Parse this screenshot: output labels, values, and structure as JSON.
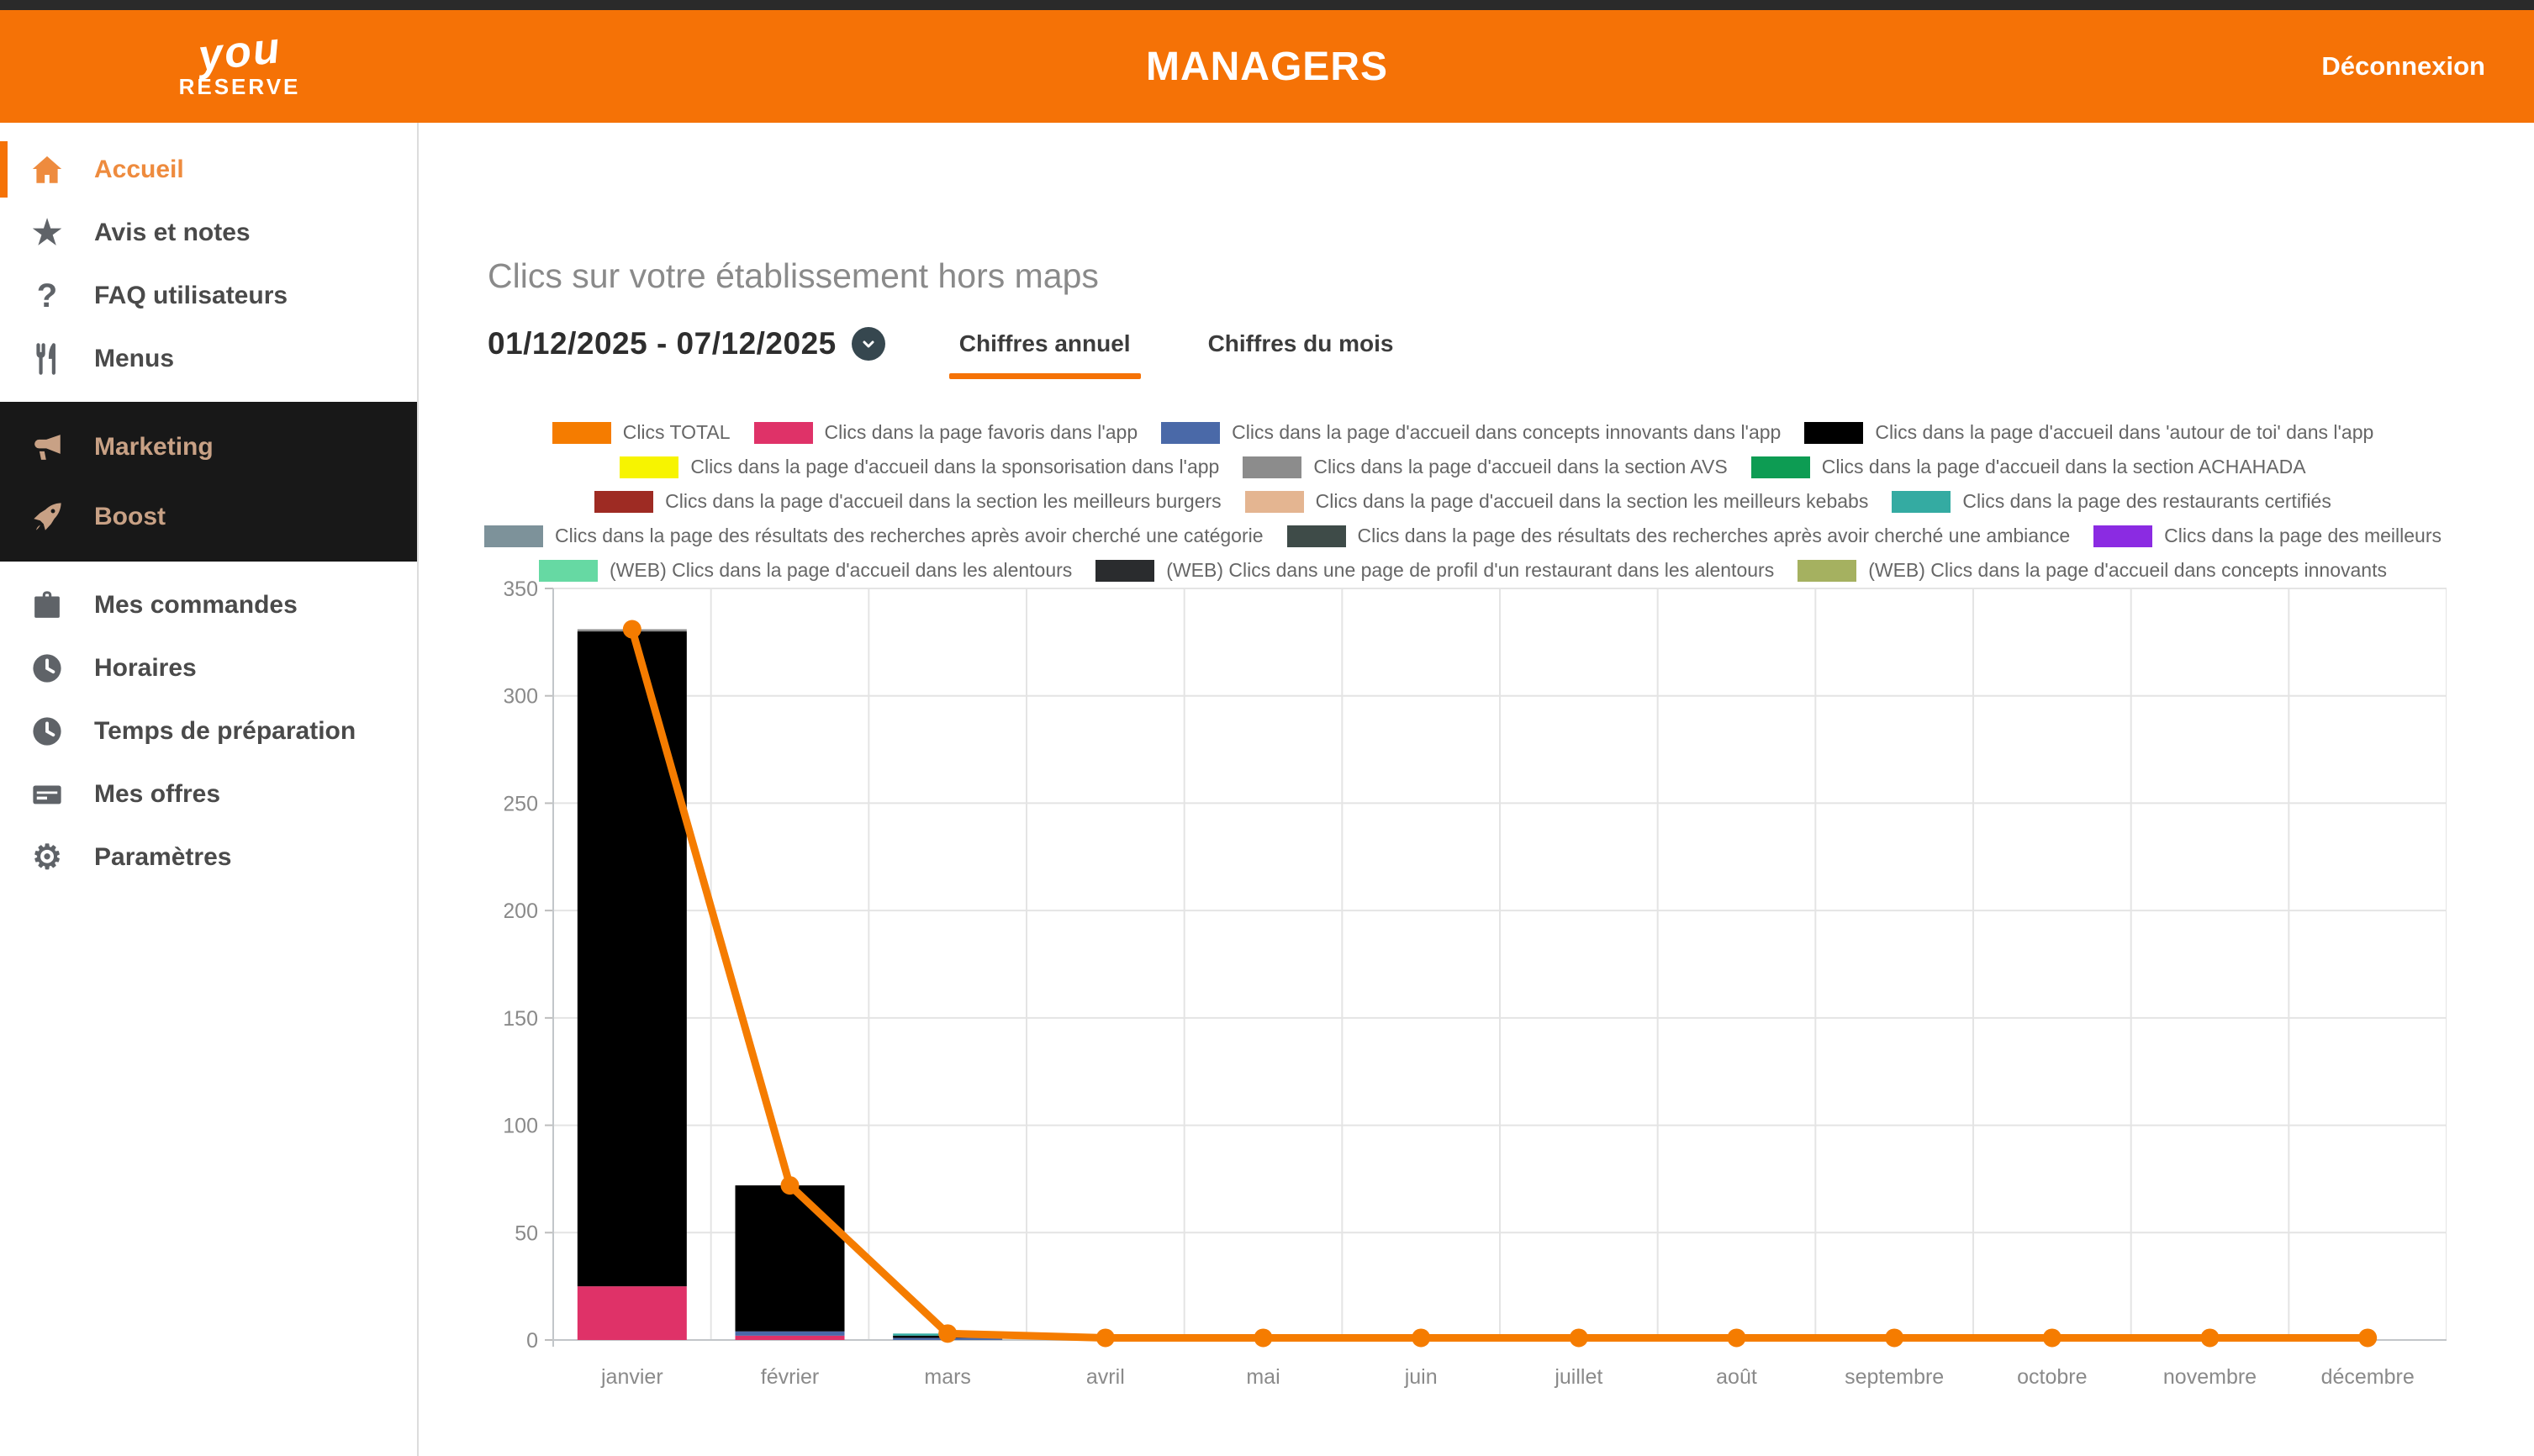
{
  "header": {
    "brand_line1": "you",
    "brand_line2": "RÉSERVE",
    "title": "MANAGERS",
    "logout_label": "Déconnexion",
    "bg_color": "#F57206"
  },
  "sidebar": {
    "items": [
      {
        "label": "Accueil",
        "icon": "home-icon",
        "active": true
      },
      {
        "label": "Avis et notes",
        "icon": "star-icon",
        "active": false
      },
      {
        "label": "FAQ utilisateurs",
        "icon": "question-icon",
        "active": false
      },
      {
        "label": "Menus",
        "icon": "utensils-icon",
        "active": false
      },
      {
        "label": "Marketing",
        "icon": "megaphone-icon",
        "active": false
      },
      {
        "label": "Boost",
        "icon": "rocket-icon",
        "active": false
      },
      {
        "label": "Mes commandes",
        "icon": "briefcase-icon",
        "active": false
      },
      {
        "label": "Horaires",
        "icon": "clock-icon",
        "active": false
      },
      {
        "label": "Temps de préparation",
        "icon": "clock-icon",
        "active": false
      },
      {
        "label": "Mes offres",
        "icon": "card-icon",
        "active": false
      },
      {
        "label": "Paramètres",
        "icon": "gear-icon",
        "active": false
      }
    ]
  },
  "main": {
    "title": "Clics sur votre établissement hors maps",
    "date_range": "01/12/2025 - 07/12/2025",
    "tabs": [
      {
        "label": "Chiffres annuel",
        "active": true
      },
      {
        "label": "Chiffres du mois",
        "active": false
      }
    ]
  },
  "legend": {
    "rows": [
      [
        {
          "color": "#F57C00",
          "label": "Clics TOTAL"
        },
        {
          "color": "#DF3268",
          "label": "Clics dans la page favoris dans l'app"
        },
        {
          "color": "#4A69A8",
          "label": "Clics dans la page d'accueil dans concepts innovants dans l'app"
        },
        {
          "color": "#000000",
          "label": "Clics dans la page d'accueil dans 'autour de toi' dans l'app"
        }
      ],
      [
        {
          "color": "#F7F400",
          "label": "Clics dans la page d'accueil dans la sponsorisation dans l'app"
        },
        {
          "color": "#8C8C8C",
          "label": "Clics dans la page d'accueil dans la section AVS"
        },
        {
          "color": "#0D9C53",
          "label": "Clics dans la page d'accueil dans la section ACHAHADA"
        }
      ],
      [
        {
          "color": "#9E2B23",
          "label": "Clics dans la page d'accueil dans la section les meilleurs burgers"
        },
        {
          "color": "#E4B591",
          "label": "Clics dans la page d'accueil dans la section les meilleurs kebabs"
        },
        {
          "color": "#34ABA2",
          "label": "Clics dans la page des restaurants certifiés"
        }
      ],
      [
        {
          "color": "#7D929A",
          "label": "Clics dans la page des résultats des recherches après avoir cherché une catégorie"
        },
        {
          "color": "#3E4B48",
          "label": "Clics dans la page des résultats des recherches après avoir cherché une ambiance"
        },
        {
          "color": "#8B2BE2",
          "label": "Clics dans la page des meilleurs"
        }
      ],
      [
        {
          "color": "#66D9A3",
          "label": "(WEB) Clics dans la page d'accueil dans les alentours"
        },
        {
          "color": "#2A2C2E",
          "label": "(WEB) Clics dans une page de profil d'un restaurant dans les alentours"
        },
        {
          "color": "#A5B160",
          "label": "(WEB) Clics dans la page d'accueil dans concepts innovants"
        }
      ]
    ]
  },
  "chart_data": {
    "type": "bar",
    "subtype": "stacked-bars-with-line",
    "categories": [
      "janvier",
      "février",
      "mars",
      "avril",
      "mai",
      "juin",
      "juillet",
      "août",
      "septembre",
      "octobre",
      "novembre",
      "décembre"
    ],
    "ylim": [
      0,
      350
    ],
    "y_ticks": [
      0,
      50,
      100,
      150,
      200,
      250,
      300,
      350
    ],
    "grid": true,
    "legend_position": "top",
    "line_series": {
      "name": "Clics TOTAL",
      "color": "#F57C00",
      "values": [
        331,
        72,
        3,
        1,
        1,
        1,
        1,
        1,
        1,
        1,
        1,
        1
      ]
    },
    "stacked_series": [
      {
        "name": "Clics dans la page favoris dans l'app",
        "color": "#DF3268",
        "values": [
          25,
          2,
          0,
          0,
          0,
          0,
          0,
          0,
          0,
          0,
          0,
          0
        ]
      },
      {
        "name": "Clics dans la page d'accueil dans concepts innovants dans l'app",
        "color": "#4A69A8",
        "values": [
          0,
          2,
          1,
          0,
          0,
          0,
          0,
          0,
          0,
          0,
          0,
          0
        ]
      },
      {
        "name": "Clics dans la page d'accueil dans 'autour de toi' dans l'app",
        "color": "#000000",
        "values": [
          305,
          68,
          1,
          0,
          0,
          0,
          0,
          0,
          0,
          0,
          0,
          0
        ]
      },
      {
        "name": "Clics dans la page d'accueil dans la section AVS",
        "color": "#8C8C8C",
        "values": [
          1,
          0,
          0,
          0,
          0,
          0,
          0,
          0,
          0,
          0,
          0,
          0
        ]
      },
      {
        "name": "Clics dans la page des restaurants certifiés",
        "color": "#34ABA2",
        "values": [
          0,
          0,
          1,
          0,
          0,
          0,
          0,
          0,
          0,
          0,
          0,
          0
        ]
      }
    ]
  }
}
